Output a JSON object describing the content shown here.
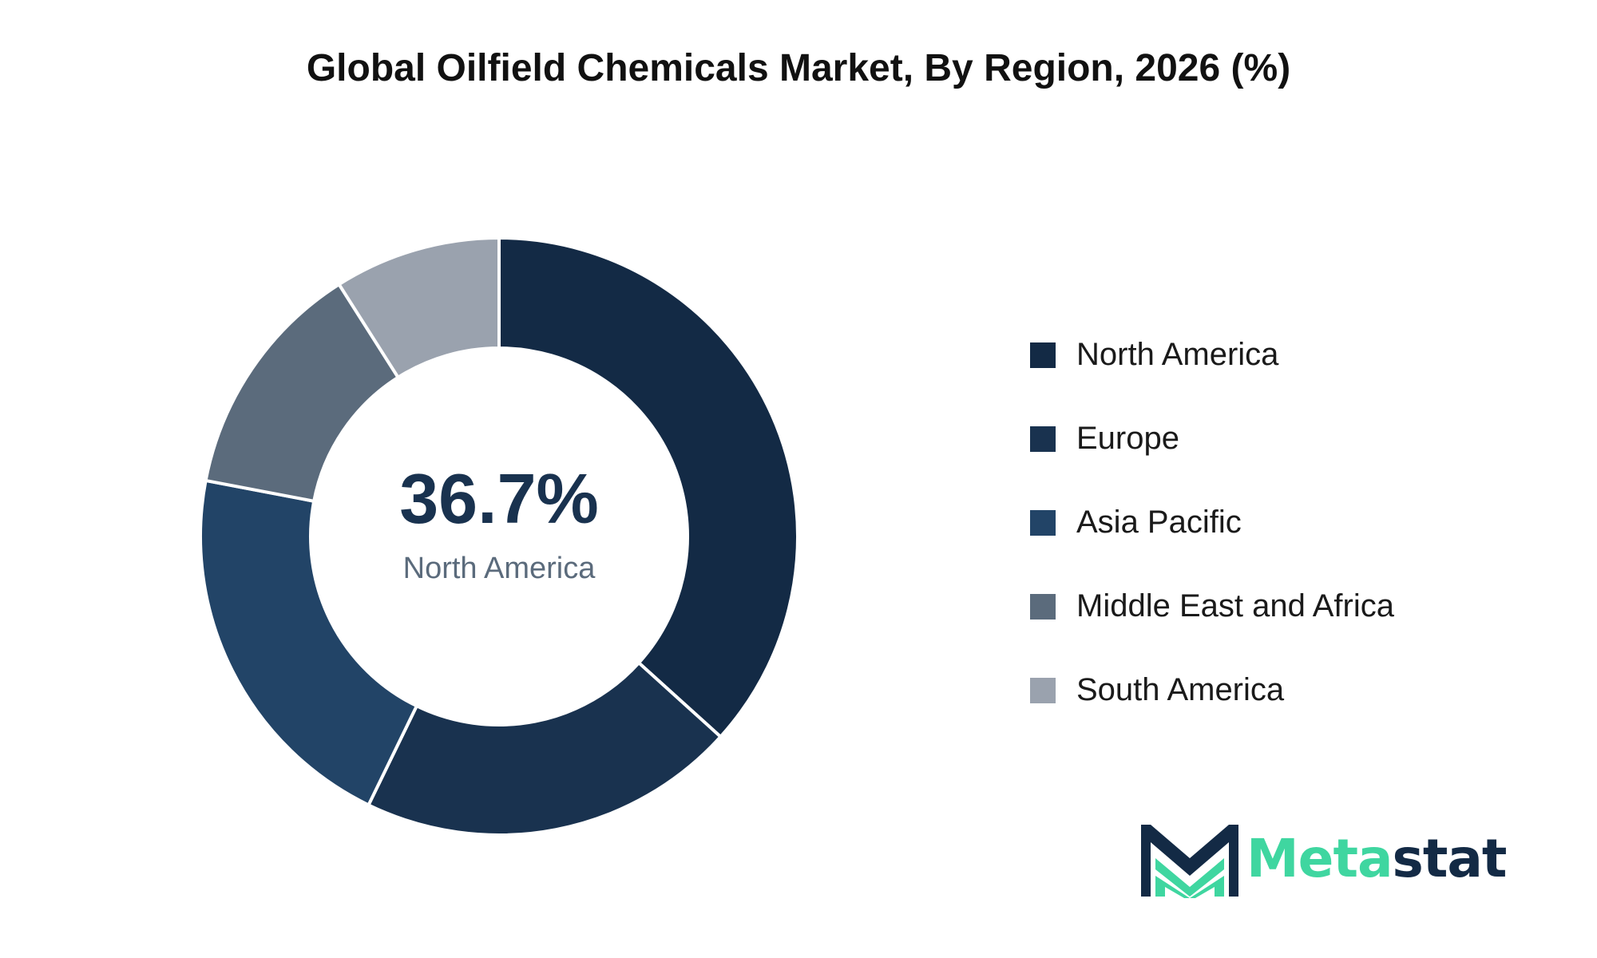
{
  "title": "Global Oilfield Chemicals Market, By Region, 2026 (%)",
  "chart_data": {
    "type": "pie",
    "variant": "donut",
    "title": "Global Oilfield Chemicals Market, By Region, 2026 (%)",
    "center_value": "36.7%",
    "center_label": "North America",
    "categories": [
      "North America",
      "Europe",
      "Asia Pacific",
      "Middle East and Africa",
      "South America"
    ],
    "values": [
      36.7,
      20.5,
      20.8,
      13.0,
      9.0
    ],
    "colors": [
      "#132a45",
      "#19324f",
      "#224467",
      "#5b6b7c",
      "#9aa2ae"
    ],
    "legend_position": "right"
  },
  "logo": {
    "text_part1": "Meta",
    "text_part2": "stat",
    "color_part1": "#3fd6a0",
    "color_part2": "#132a45"
  }
}
